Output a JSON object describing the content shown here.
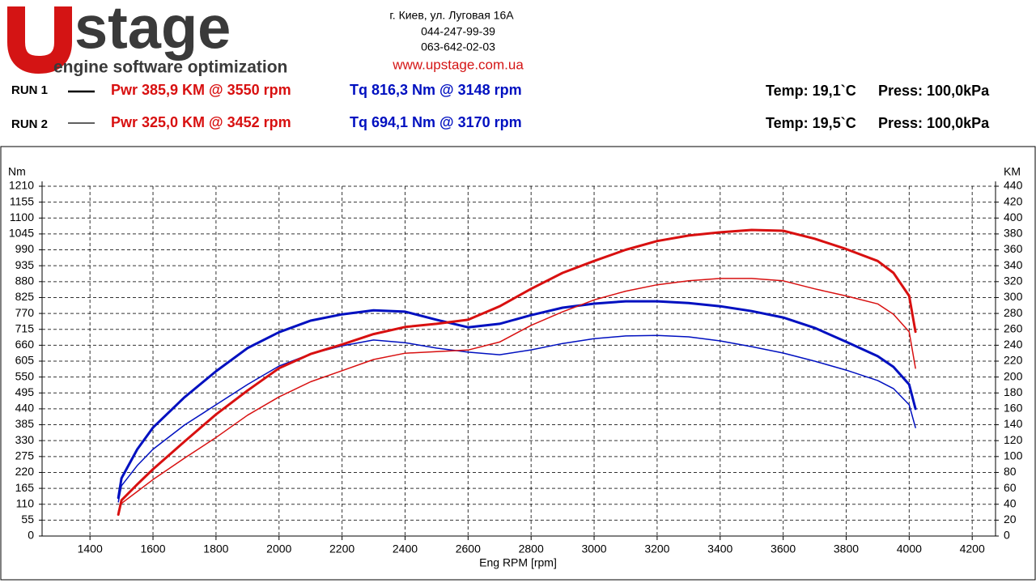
{
  "logo": {
    "name": "stage",
    "tagline": "engine software optimization"
  },
  "address": [
    "г. Киев, ул. Луговая 16А",
    "044-247-99-39",
    "063-642-02-03",
    "www.upstage.com.ua"
  ],
  "runs": [
    {
      "label": "RUN 1",
      "power": "Pwr  385,9 KM @ 3550 rpm",
      "torque": "Tq 816,3 Nm @ 3148 rpm",
      "temp": "Temp: 19,1`C",
      "press": "Press: 100,0kPa"
    },
    {
      "label": "RUN 2",
      "power": "Pwr  325,0 KM @ 3452 rpm",
      "torque": "Tq 694,1 Nm @ 3170 rpm",
      "temp": "Temp: 19,5`C",
      "press": "Press: 100,0kPa"
    }
  ],
  "chart_data": {
    "type": "line",
    "ylabel": "Nm",
    "y2label": "KM",
    "xlabel": "Eng RPM [rpm]",
    "xlim": [
      1248,
      4274
    ],
    "xticks": [
      1400,
      1600,
      1800,
      2000,
      2200,
      2400,
      2600,
      2800,
      3000,
      3200,
      3400,
      3600,
      3800,
      4000,
      4200
    ],
    "ylim": [
      0,
      1210
    ],
    "yticks": [
      0,
      55,
      110,
      165,
      220,
      275,
      330,
      385,
      440,
      495,
      550,
      605,
      660,
      715,
      770,
      825,
      880,
      935,
      990,
      1045,
      1100,
      1155,
      1210
    ],
    "y2lim": [
      0,
      440
    ],
    "y2ticks": [
      0,
      20,
      40,
      60,
      80,
      100,
      120,
      140,
      160,
      180,
      200,
      220,
      240,
      260,
      280,
      300,
      320,
      340,
      360,
      380,
      400,
      420,
      440
    ],
    "grid": true,
    "x": [
      1490,
      1500,
      1550,
      1600,
      1700,
      1800,
      1900,
      2000,
      2100,
      2200,
      2300,
      2400,
      2500,
      2600,
      2700,
      2800,
      2900,
      3000,
      3100,
      3200,
      3300,
      3400,
      3500,
      3600,
      3700,
      3800,
      3900,
      3950,
      4000,
      4020
    ],
    "series": [
      {
        "color": "#0010c0",
        "width": 3,
        "axis": "y",
        "values": [
          132,
          200,
          300,
          375,
          480,
          570,
          650,
          705,
          745,
          767,
          781,
          776,
          748,
          722,
          734,
          764,
          790,
          804,
          812,
          812,
          806,
          795,
          778,
          756,
          720,
          672,
          622,
          585,
          524,
          440
        ]
      },
      {
        "color": "#0010c0",
        "width": 1.5,
        "axis": "y",
        "values": [
          118,
          174,
          244,
          300,
          384,
          454,
          524,
          588,
          630,
          658,
          678,
          669,
          650,
          636,
          627,
          644,
          666,
          683,
          692,
          694,
          689,
          675,
          655,
          633,
          605,
          574,
          538,
          510,
          454,
          375
        ]
      },
      {
        "color": "#d81010",
        "width": 3,
        "axis": "y2",
        "values": [
          27,
          45,
          65,
          84,
          119,
          153,
          183,
          211,
          229,
          241,
          254,
          263,
          267,
          272,
          289,
          311,
          331,
          346,
          360,
          371,
          378,
          382,
          385,
          384,
          374,
          361,
          346,
          331,
          302,
          257
        ]
      },
      {
        "color": "#d81010",
        "width": 1.5,
        "axis": "y2",
        "values": [
          31,
          41,
          56,
          71,
          98,
          124,
          152,
          175,
          194,
          208,
          222,
          230,
          232,
          234,
          244,
          265,
          282,
          297,
          308,
          316,
          321,
          324,
          324,
          321,
          311,
          302,
          292,
          279,
          257,
          211
        ]
      }
    ]
  }
}
